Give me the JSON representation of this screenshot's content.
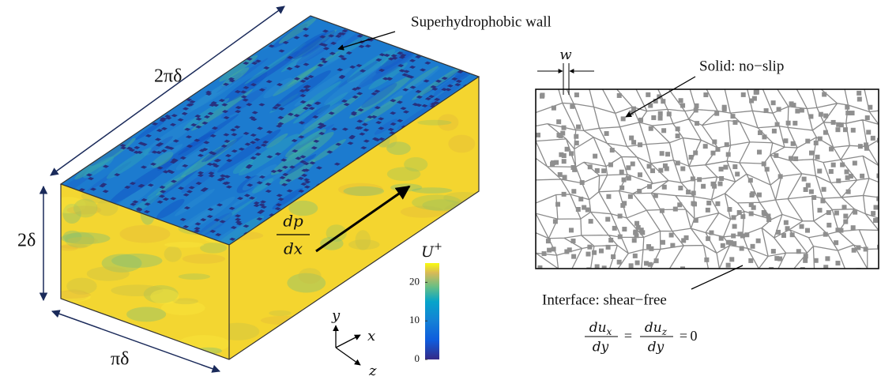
{
  "box": {
    "wall_label": "Superhydrophobic wall",
    "length_label": "2πδ",
    "height_label": "2δ",
    "width_label": "πδ",
    "pressure_gradient": {
      "numerator": "dp",
      "denominator": "dx"
    }
  },
  "axes": {
    "y": "y",
    "x": "x",
    "z": "z"
  },
  "colorbar": {
    "symbol": "U",
    "superscript": "+",
    "lim": [
      0,
      25
    ],
    "ticks": [
      0,
      10,
      20
    ]
  },
  "surface": {
    "width_label": "w",
    "solid_label": "Solid: no−slip",
    "interface_label": "Interface: shear−free",
    "equation": {
      "terms": [
        {
          "numerator": "du",
          "subscript": "x",
          "denominator": "dy"
        },
        {
          "numerator": "du",
          "subscript": "z",
          "denominator": "dy"
        }
      ],
      "equals": "=",
      "rhs": "0"
    }
  }
}
